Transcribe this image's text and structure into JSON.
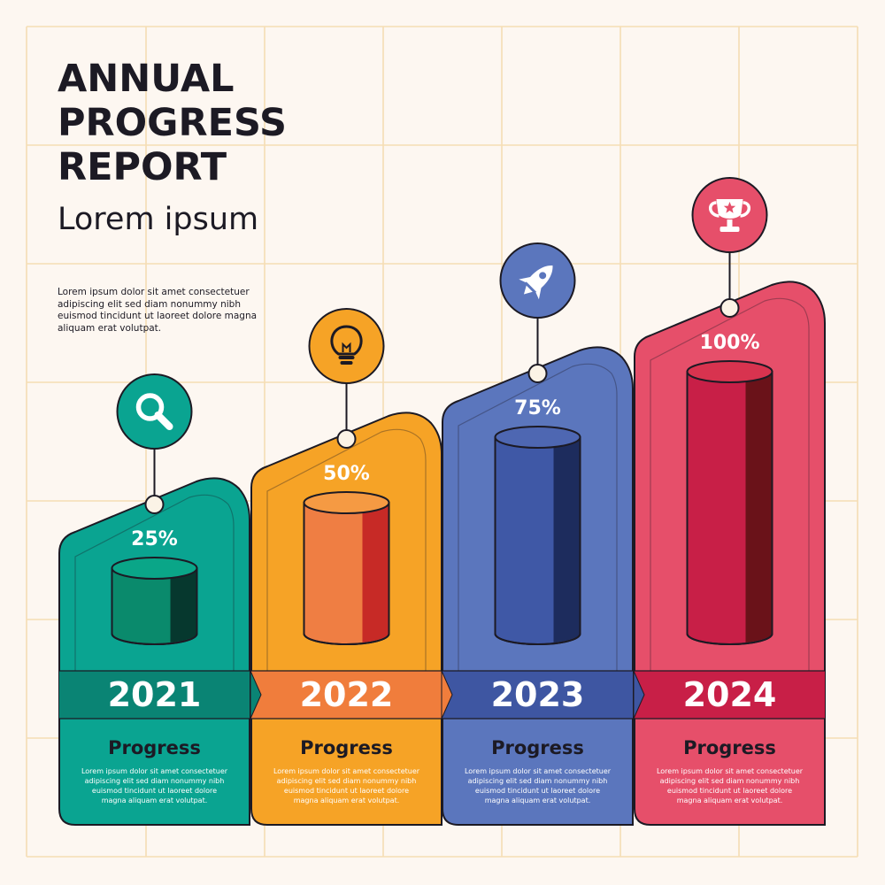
{
  "header": {
    "title_lines": [
      "ANNUAL",
      "PROGRESS",
      "REPORT"
    ],
    "subtitle": "Lorem ipsum",
    "intro": "Lorem ipsum dolor sit amet consectetuer adipiscing elit sed diam nonummy nibh euismod tincidunt ut laoreet dolore magna aliquam erat volutpat."
  },
  "chart_data": {
    "type": "bar",
    "categories": [
      "2021",
      "2022",
      "2023",
      "2024"
    ],
    "values": [
      25,
      50,
      75,
      100
    ],
    "value_labels": [
      "25%",
      "50%",
      "75%",
      "100%"
    ],
    "ylim": [
      0,
      100
    ],
    "xlabel": "",
    "ylabel": "",
    "grid": true
  },
  "cards": [
    {
      "year": "2021",
      "label": "Progress",
      "icon": "magnifier-icon",
      "color": "#0aa491",
      "band_color": "#0a8474",
      "cyl_front": "#0a8a6c",
      "cyl_top": "#0aa688",
      "cyl_side": "#06382e",
      "desc": [
        "Lorem ipsum dolor sit amet consectetuer",
        "adipiscing elit sed diam nonummy nibh",
        "euismod tincidunt ut laoreet dolore",
        "magna aliquam erat volutpat."
      ]
    },
    {
      "year": "2022",
      "label": "Progress",
      "icon": "lightbulb-icon",
      "color": "#f6a326",
      "band_color": "#f07d3c",
      "cyl_front": "#ef7e43",
      "cyl_top": "#f59a43",
      "cyl_side": "#c72a26",
      "desc": [
        "Lorem ipsum dolor sit amet consectetuer",
        "adipiscing elit sed diam nonummy nibh",
        "euismod tincidunt ut laoreet dolore",
        "magna aliquam erat volutpat."
      ]
    },
    {
      "year": "2023",
      "label": "Progress",
      "icon": "rocket-icon",
      "color": "#5b76bd",
      "band_color": "#3e56a2",
      "cyl_front": "#3f58a6",
      "cyl_top": "#4e67b2",
      "cyl_side": "#1d2c5d",
      "desc": [
        "Lorem ipsum dolor sit amet consectetuer",
        "adipiscing elit sed diam nonummy nibh",
        "euismod tincidunt ut laoreet dolore",
        "magna aliquam erat volutpat."
      ]
    },
    {
      "year": "2024",
      "label": "Progress",
      "icon": "trophy-icon",
      "color": "#e64f6a",
      "band_color": "#c81f47",
      "cyl_front": "#c81f47",
      "cyl_top": "#d8334f",
      "cyl_side": "#6a1219",
      "desc": [
        "Lorem ipsum dolor sit amet consectetuer",
        "adipiscing elit sed diam nonummy nibh",
        "euismod tincidunt ut laoreet dolore",
        "magna aliquam erat volutpat."
      ]
    }
  ],
  "colors": {
    "background": "#fdf7f1",
    "grid": "#f5ddb4",
    "outline": "#1c1a24",
    "text_dark": "#1c1a24",
    "white": "#ffffff"
  }
}
